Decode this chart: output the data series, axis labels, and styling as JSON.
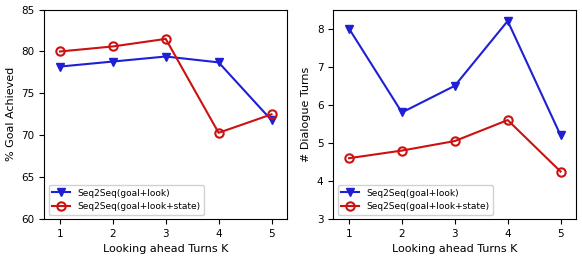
{
  "x": [
    1,
    2,
    3,
    4,
    5
  ],
  "left_blue": [
    78.2,
    78.8,
    79.4,
    78.7,
    71.8
  ],
  "left_red": [
    80.0,
    80.6,
    81.5,
    70.3,
    72.5
  ],
  "right_blue": [
    8.0,
    5.8,
    6.5,
    8.2,
    5.2
  ],
  "right_red": [
    4.6,
    4.8,
    5.05,
    5.6,
    4.25
  ],
  "left_ylabel": "% Goal Achieved",
  "right_ylabel": "# Dialogue Turns",
  "xlabel": "Looking ahead Turns K",
  "left_ylim": [
    60,
    85
  ],
  "right_ylim": [
    3,
    8.5
  ],
  "left_yticks": [
    60,
    65,
    70,
    75,
    80,
    85
  ],
  "right_yticks": [
    3,
    4,
    5,
    6,
    7,
    8
  ],
  "legend_blue": "Seq2Seq(goal+look)",
  "legend_red": "Seq2Seq(goal+look+state)",
  "blue_color": "#1f1fd4",
  "red_color": "#cc1111"
}
